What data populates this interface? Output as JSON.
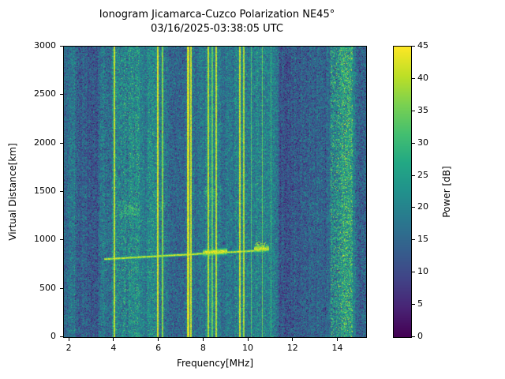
{
  "chart_data": {
    "type": "heatmap",
    "title": "Ionogram Jicamarca-Cuzco Polarization NE45°",
    "subtitle": "03/16/2025-03:38:05 UTC",
    "xlabel": "Frequency[MHz]",
    "ylabel": "Virtual Distance[km]",
    "colorbar_label": "Power [dB]",
    "xlim": [
      1.75,
      15.25
    ],
    "ylim": [
      0,
      3000
    ],
    "clim": [
      0,
      45
    ],
    "x_ticks": [
      2,
      4,
      6,
      8,
      10,
      12,
      14
    ],
    "y_ticks": [
      0,
      500,
      1000,
      1500,
      2000,
      2500,
      3000
    ],
    "colorbar_ticks": [
      0,
      5,
      10,
      15,
      20,
      25,
      30,
      35,
      40,
      45
    ],
    "colormap": "viridis",
    "colormap_stops": [
      [
        0.0,
        68,
        1,
        84
      ],
      [
        0.1,
        72,
        36,
        117
      ],
      [
        0.2,
        65,
        68,
        135
      ],
      [
        0.3,
        53,
        95,
        141
      ],
      [
        0.4,
        42,
        120,
        142
      ],
      [
        0.5,
        33,
        145,
        140
      ],
      [
        0.6,
        34,
        168,
        132
      ],
      [
        0.7,
        68,
        191,
        112
      ],
      [
        0.8,
        122,
        209,
        81
      ],
      [
        0.9,
        189,
        223,
        38
      ],
      [
        1.0,
        253,
        231,
        37
      ]
    ],
    "seed": 20250316,
    "background_noise": {
      "mean_db": 17,
      "std_db": 4.6,
      "column_variation_db": 2.5
    },
    "frequency_bands": [
      {
        "f0": 1.75,
        "f1": 2.2,
        "delta_db": -2.0,
        "std_scale": 1.0
      },
      {
        "f0": 2.25,
        "f1": 3.25,
        "delta_db": -4.5,
        "std_scale": 1.0
      },
      {
        "f0": 3.45,
        "f1": 3.8,
        "delta_db": 1.0,
        "std_scale": 1.1
      },
      {
        "f0": 3.9,
        "f1": 5.15,
        "delta_db": 3.0,
        "std_scale": 1.25
      },
      {
        "f0": 5.5,
        "f1": 6.35,
        "delta_db": 2.0,
        "std_scale": 1.15
      },
      {
        "f0": 7.15,
        "f1": 7.6,
        "delta_db": 2.0,
        "std_scale": 1.1
      },
      {
        "f0": 8.05,
        "f1": 8.75,
        "delta_db": 2.0,
        "std_scale": 1.1
      },
      {
        "f0": 9.35,
        "f1": 9.95,
        "delta_db": 2.5,
        "std_scale": 1.15
      },
      {
        "f0": 10.3,
        "f1": 10.75,
        "delta_db": 1.5,
        "std_scale": 1.1
      },
      {
        "f0": 11.35,
        "f1": 12.35,
        "delta_db": -4.0,
        "std_scale": 1.0
      },
      {
        "f0": 12.4,
        "f1": 13.5,
        "delta_db": -2.5,
        "std_scale": 1.0
      },
      {
        "f0": 13.65,
        "f1": 14.65,
        "delta_db": 6.5,
        "std_scale": 1.6
      },
      {
        "f0": 14.75,
        "f1": 15.25,
        "delta_db": -2.0,
        "std_scale": 1.1
      }
    ],
    "rfi_lines": [
      {
        "f": 4.02,
        "width_mhz": 0.07,
        "db": 44
      },
      {
        "f": 5.95,
        "width_mhz": 0.09,
        "db": 46
      },
      {
        "f": 6.16,
        "width_mhz": 0.06,
        "db": 40
      },
      {
        "f": 7.3,
        "width_mhz": 0.08,
        "db": 46
      },
      {
        "f": 7.44,
        "width_mhz": 0.07,
        "db": 45
      },
      {
        "f": 8.21,
        "width_mhz": 0.07,
        "db": 44
      },
      {
        "f": 8.37,
        "width_mhz": 0.05,
        "db": 38
      },
      {
        "f": 8.55,
        "width_mhz": 0.07,
        "db": 44
      },
      {
        "f": 9.6,
        "width_mhz": 0.08,
        "db": 45
      },
      {
        "f": 9.8,
        "width_mhz": 0.07,
        "db": 43
      },
      {
        "f": 10.12,
        "width_mhz": 0.05,
        "db": 36
      },
      {
        "f": 10.62,
        "width_mhz": 0.06,
        "db": 38
      },
      {
        "f": 11.0,
        "width_mhz": 0.05,
        "db": 33
      }
    ],
    "echo_trace": {
      "f_start": 3.55,
      "f_end": 10.9,
      "h_start_km": 805,
      "h_end_km": 900,
      "sigma_km": 12,
      "peak_db": 46,
      "thick_regions": [
        {
          "f0": 7.95,
          "f1": 9.05,
          "sigma_km": 32,
          "h_offset": 10
        },
        {
          "f0": 10.25,
          "f1": 10.9,
          "sigma_km": 30,
          "h_offset": 15
        }
      ]
    },
    "echo_patches": [
      {
        "f0": 4.0,
        "f1": 5.3,
        "h0": 1230,
        "h1": 1400,
        "db": 34,
        "density": 0.55
      },
      {
        "f0": 5.85,
        "f1": 6.3,
        "h0": 1280,
        "h1": 1430,
        "db": 32,
        "density": 0.4
      },
      {
        "f0": 7.95,
        "f1": 8.7,
        "h0": 1420,
        "h1": 1580,
        "db": 33,
        "density": 0.45
      },
      {
        "f0": 10.25,
        "f1": 10.85,
        "h0": 870,
        "h1": 990,
        "db": 42,
        "density": 0.8
      }
    ]
  }
}
